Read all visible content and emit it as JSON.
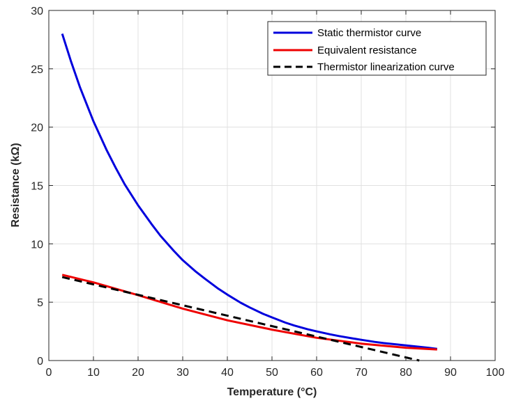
{
  "chart_data": {
    "type": "line",
    "xlabel": "Temperature (°C)",
    "ylabel": "Resistance (kΩ)",
    "xlim": [
      0,
      100
    ],
    "ylim": [
      0,
      30
    ],
    "xticks": [
      0,
      10,
      20,
      30,
      40,
      50,
      60,
      70,
      80,
      90,
      100
    ],
    "yticks": [
      0,
      5,
      10,
      15,
      20,
      25,
      30
    ],
    "grid": true,
    "legend_position": "top-right",
    "series": [
      {
        "name": "Static thermistor curve",
        "color": "#0000dd",
        "style": "solid",
        "x": [
          3,
          5,
          7,
          10,
          13,
          15,
          17,
          20,
          23,
          25,
          28,
          30,
          33,
          35,
          38,
          40,
          43,
          45,
          48,
          50,
          53,
          55,
          58,
          60,
          63,
          65,
          68,
          70,
          73,
          75,
          78,
          80,
          83,
          85,
          87
        ],
        "y": [
          28.0,
          25.6,
          23.4,
          20.5,
          18.0,
          16.5,
          15.1,
          13.3,
          11.7,
          10.7,
          9.4,
          8.6,
          7.6,
          7.0,
          6.15,
          5.65,
          4.95,
          4.55,
          4.0,
          3.7,
          3.25,
          3.0,
          2.68,
          2.5,
          2.25,
          2.1,
          1.9,
          1.78,
          1.6,
          1.5,
          1.38,
          1.3,
          1.18,
          1.1,
          1.0
        ]
      },
      {
        "name": "Equivalent resistance",
        "color": "#ee0000",
        "style": "solid",
        "x": [
          3,
          10,
          20,
          30,
          40,
          50,
          60,
          70,
          80,
          87
        ],
        "y": [
          7.35,
          6.7,
          5.6,
          4.45,
          3.45,
          2.65,
          1.95,
          1.45,
          1.1,
          0.95
        ]
      },
      {
        "name": "Thermistor linearization curve",
        "color": "#000000",
        "style": "dashed",
        "x": [
          3,
          83
        ],
        "y": [
          7.15,
          0
        ]
      }
    ]
  }
}
